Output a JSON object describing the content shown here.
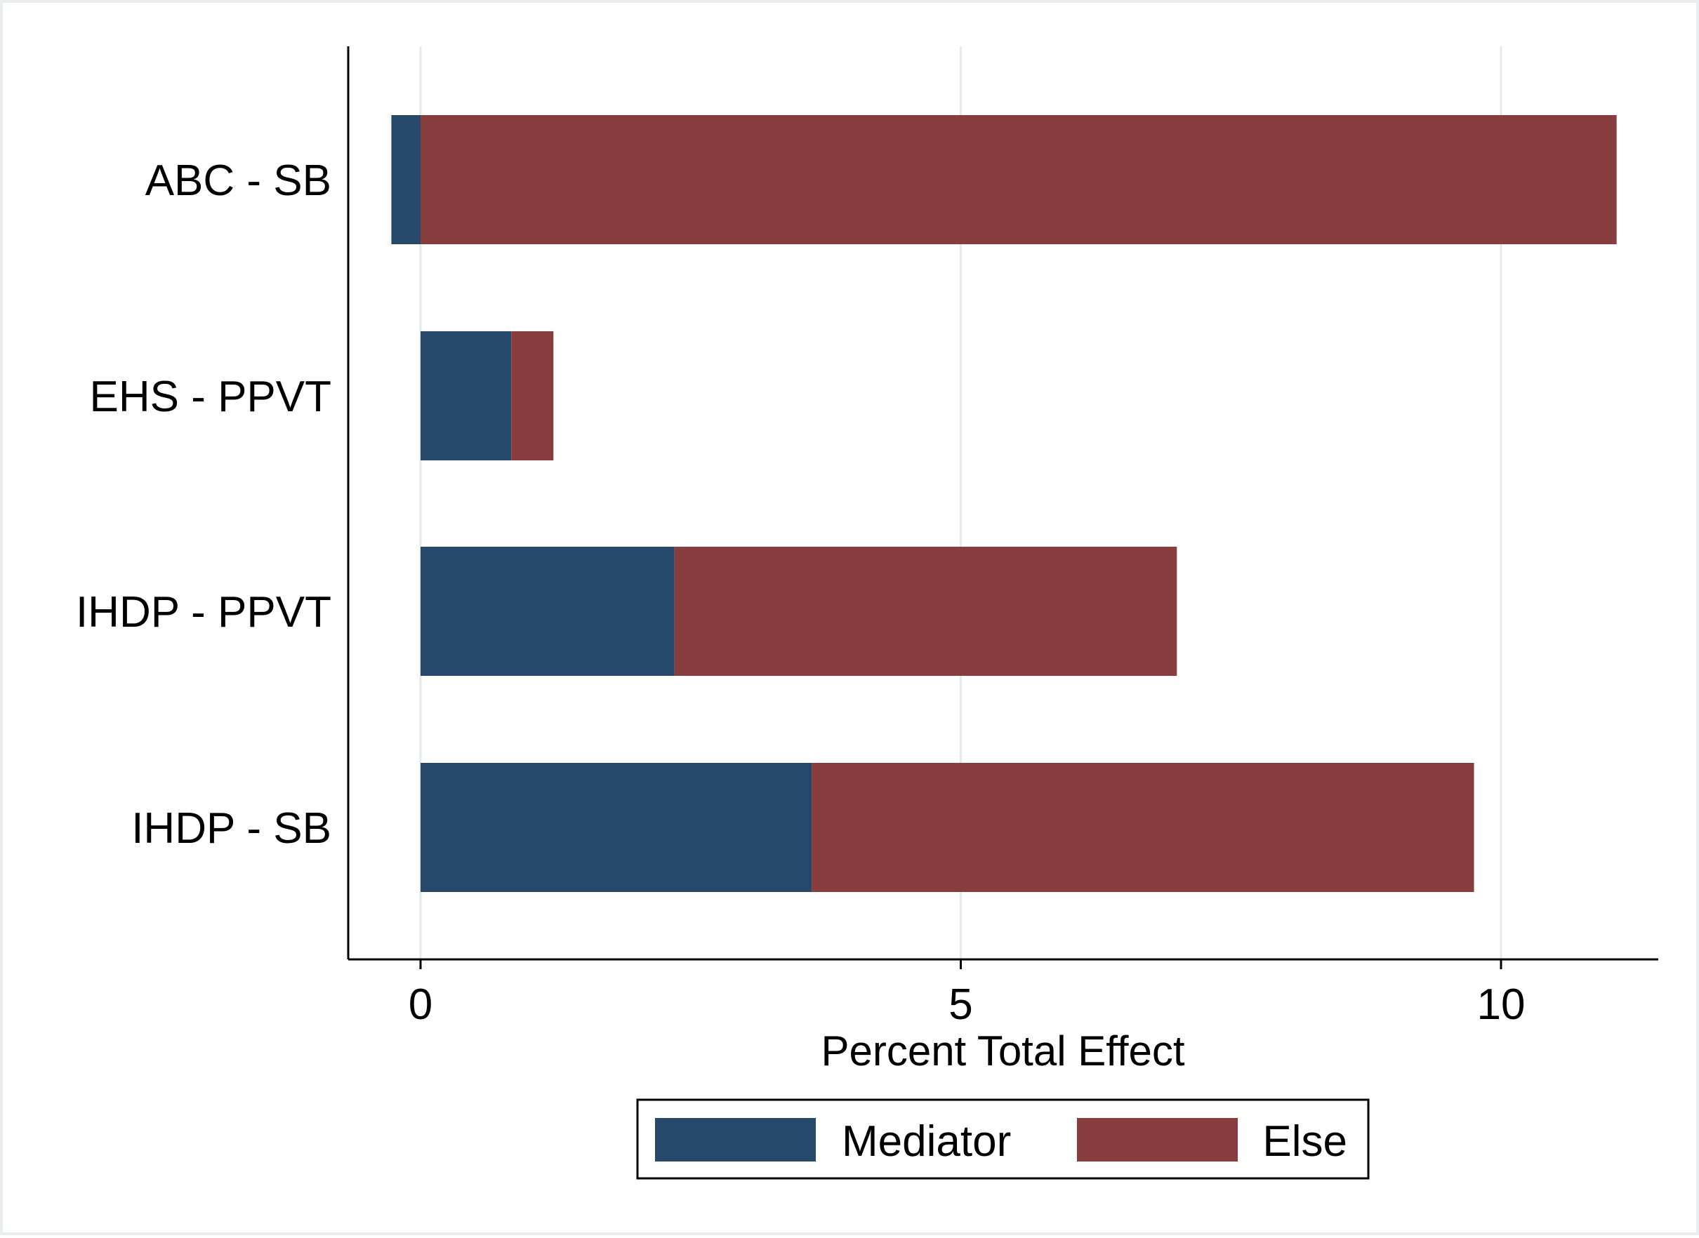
{
  "chart_data": {
    "type": "bar",
    "orientation": "horizontal",
    "stacked": true,
    "title": "",
    "xlabel": "Percent Total Effect",
    "ylabel": "",
    "xlim": [
      -0.7,
      11.45
    ],
    "xticks": [
      0,
      5,
      10
    ],
    "grid": true,
    "legend_position": "bottom",
    "categories": [
      "ABC - SB",
      "EHS - PPVT",
      "IHDP - PPVT",
      "IHDP - SB"
    ],
    "series": [
      {
        "name": "Mediator",
        "color": "#26496b",
        "values": [
          -0.27,
          0.84,
          2.35,
          3.62
        ]
      },
      {
        "name": "Else",
        "color": "#873c3e",
        "values": [
          11.07,
          0.39,
          4.65,
          6.13
        ]
      }
    ]
  }
}
